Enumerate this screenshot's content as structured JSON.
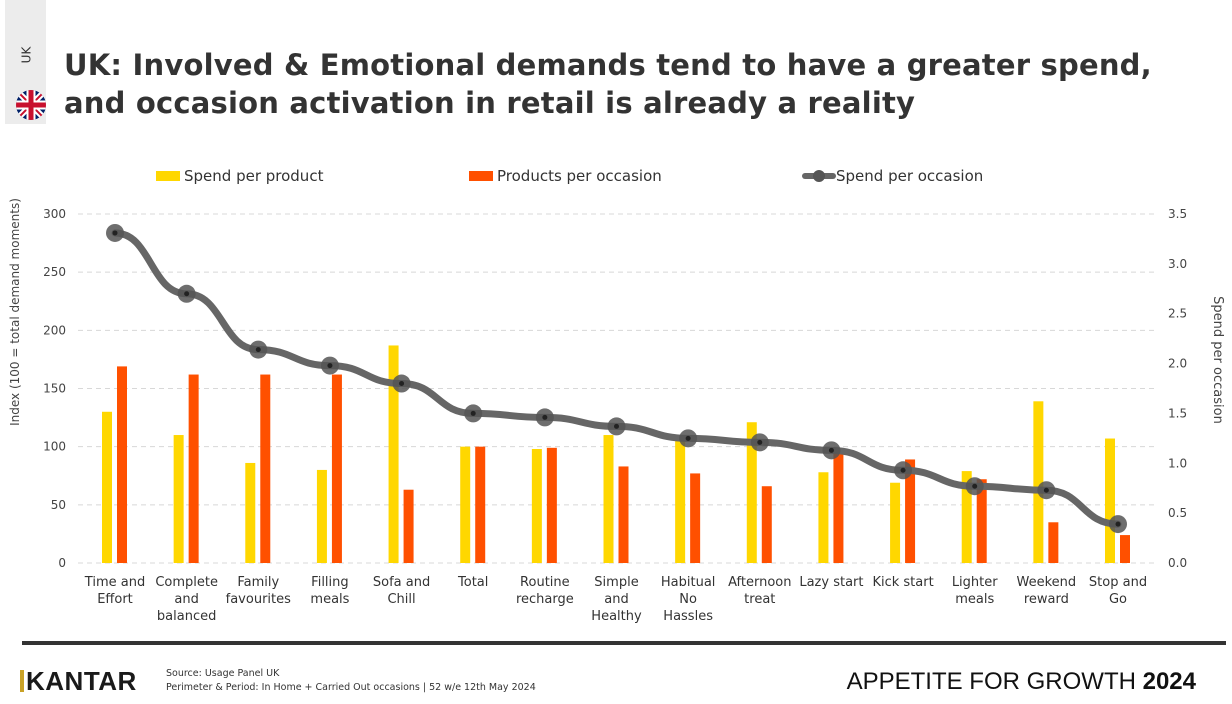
{
  "country_code": "UK",
  "title_line1": "UK: Involved & Emotional demands tend to have a greater spend,",
  "title_line2": "and occasion activation in retail is already a reality",
  "chart_data": {
    "type": "bar+line",
    "categories": [
      [
        "Time and",
        "Effort"
      ],
      [
        "Complete",
        "and",
        "balanced"
      ],
      [
        "Family",
        "favourites"
      ],
      [
        "Filling",
        "meals"
      ],
      [
        "Sofa and",
        "Chill"
      ],
      [
        "Total"
      ],
      [
        "Routine",
        "recharge"
      ],
      [
        "Simple",
        "and",
        "Healthy"
      ],
      [
        "Habitual",
        "No",
        "Hassles"
      ],
      [
        "Afternoon",
        "treat"
      ],
      [
        "Lazy start"
      ],
      [
        "Kick start"
      ],
      [
        "Lighter",
        "meals"
      ],
      [
        "Weekend",
        "reward"
      ],
      [
        "Stop and",
        "Go"
      ]
    ],
    "series": [
      {
        "name": "Spend per product",
        "type": "bar",
        "axis": "left",
        "color": "#FFD700",
        "values": [
          130,
          110,
          86,
          80,
          187,
          100,
          98,
          110,
          107,
          121,
          78,
          69,
          79,
          139,
          107
        ]
      },
      {
        "name": "Products per occasion",
        "type": "bar",
        "axis": "left",
        "color": "#FF5000",
        "values": [
          169,
          162,
          162,
          162,
          63,
          100,
          99,
          83,
          77,
          66,
          97,
          89,
          72,
          35,
          24
        ]
      },
      {
        "name": "Spend per occasion",
        "type": "line",
        "axis": "right",
        "color": "#666666",
        "values": [
          3.31,
          2.7,
          2.14,
          1.98,
          1.8,
          1.5,
          1.46,
          1.37,
          1.25,
          1.21,
          1.13,
          0.93,
          0.77,
          0.73,
          0.39
        ]
      }
    ],
    "ylabel": "Index (100 = total demand moments)",
    "y2label": "Spend per occasion",
    "ylim": [
      0,
      300
    ],
    "yticks": [
      0,
      50,
      100,
      150,
      200,
      250,
      300
    ],
    "y2lim": [
      0,
      3.5
    ],
    "y2ticks": [
      "0.0",
      "0.5",
      "1.0",
      "1.5",
      "2.0",
      "2.5",
      "3.0",
      "3.5"
    ],
    "grid": true,
    "legend": "top"
  },
  "footer": {
    "logo": "KANTAR",
    "source": "Source: Usage Panel UK",
    "period": "Perimeter & Period: In Home + Carried Out occasions | 52 w/e 12th May 2024",
    "brand_light": "APPETITE FOR GROWTH",
    "brand_bold": "2024"
  }
}
